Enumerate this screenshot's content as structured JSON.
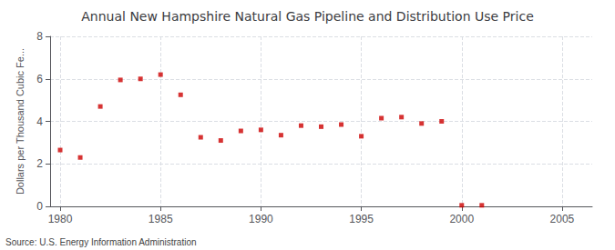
{
  "chart_data": {
    "type": "scatter",
    "title": "Annual New Hampshire Natural Gas Pipeline and Distribution Use Price",
    "ylabel": "Dollars per Thousand Cubic Fe...",
    "annotation": "Source: U.S. Energy Information Administration",
    "x": [
      1980,
      1981,
      1982,
      1983,
      1984,
      1985,
      1986,
      1987,
      1988,
      1989,
      1990,
      1991,
      1992,
      1993,
      1994,
      1995,
      1996,
      1997,
      1998,
      1999,
      2000,
      2001
    ],
    "values": [
      2.65,
      2.3,
      4.7,
      5.95,
      6.0,
      6.2,
      5.25,
      3.25,
      3.1,
      3.55,
      3.6,
      3.35,
      3.8,
      3.75,
      3.85,
      3.3,
      4.15,
      4.2,
      3.9,
      4.0,
      0.05,
      0.05
    ],
    "color": "#cc0000",
    "marker": "square",
    "xlim": [
      1979.5,
      2006.5
    ],
    "ylim": [
      0,
      8
    ],
    "xticks": [
      1980,
      1985,
      1990,
      1995,
      2000,
      2005
    ],
    "yticks": [
      0,
      2,
      4,
      6,
      8
    ],
    "grid": true
  }
}
